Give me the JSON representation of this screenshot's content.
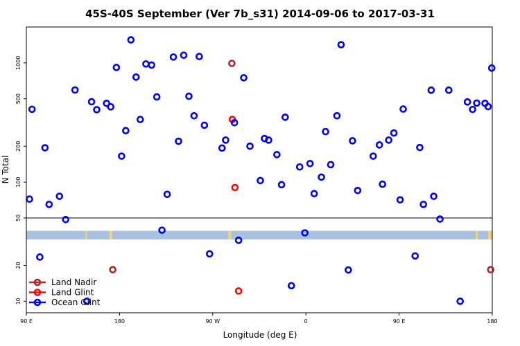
{
  "chart_data": {
    "type": "scatter",
    "title": "45S-40S September (Ver 7b_s31)   2014-09-06 to 2017-03-31",
    "xlabel": "Longitude (deg E)",
    "ylabel": "N Total",
    "x_ticks": [
      {
        "lon": 90,
        "label": "90 E"
      },
      {
        "lon": 180,
        "label": "180"
      },
      {
        "lon": 270,
        "label": "90 W"
      },
      {
        "lon": 360,
        "label": "0"
      },
      {
        "lon": 450,
        "label": "90 E"
      },
      {
        "lon": 540,
        "label": "180"
      }
    ],
    "xlim": [
      90,
      540
    ],
    "upper_panel": {
      "scale": "log",
      "ylim": [
        50,
        2000
      ],
      "ticks": [
        50,
        100,
        200,
        500,
        1000
      ]
    },
    "lower_panel": {
      "scale": "log",
      "ylim": [
        8,
        50
      ],
      "ticks": [
        10,
        20
      ]
    },
    "legend": {
      "position": "bottom-left"
    },
    "map_strip": {
      "ocean_color": "#a9c1e0",
      "land_color": "#f2d27a",
      "land_lons": [
        [
          147,
          148.5
        ],
        [
          170,
          173
        ],
        [
          285,
          288
        ],
        [
          524,
          526
        ],
        [
          536,
          540
        ]
      ]
    },
    "series": [
      {
        "name": "Land Nadir",
        "color": "#a52a2a",
        "points": [
          {
            "x": 173.5,
            "y": 18.4
          },
          {
            "x": 288.5,
            "y": 990
          },
          {
            "x": 538.5,
            "y": 18.4
          }
        ]
      },
      {
        "name": "Land Glint",
        "color": "#ff0000",
        "points": [
          {
            "x": 289,
            "y": 335
          },
          {
            "x": 291.5,
            "y": 90
          },
          {
            "x": 295,
            "y": 12.2
          }
        ]
      },
      {
        "name": "Ocean Glint",
        "color": "#0000e0",
        "points": [
          {
            "x": 95.5,
            "y": 408
          },
          {
            "x": 103,
            "y": 23.5
          },
          {
            "x": 108,
            "y": 194
          },
          {
            "x": 112,
            "y": 65
          },
          {
            "x": 122,
            "y": 76
          },
          {
            "x": 128,
            "y": 48.5
          },
          {
            "x": 137,
            "y": 592
          },
          {
            "x": 148.5,
            "y": 10
          },
          {
            "x": 153,
            "y": 472
          },
          {
            "x": 158,
            "y": 405
          },
          {
            "x": 167.5,
            "y": 458
          },
          {
            "x": 171.5,
            "y": 428
          },
          {
            "x": 177,
            "y": 915
          },
          {
            "x": 182,
            "y": 165
          },
          {
            "x": 186,
            "y": 270
          },
          {
            "x": 191,
            "y": 1560
          },
          {
            "x": 196,
            "y": 760
          },
          {
            "x": 200,
            "y": 335
          },
          {
            "x": 205.5,
            "y": 980
          },
          {
            "x": 211,
            "y": 958
          },
          {
            "x": 216,
            "y": 518
          },
          {
            "x": 221,
            "y": 39.5
          },
          {
            "x": 226,
            "y": 79
          },
          {
            "x": 232,
            "y": 1120
          },
          {
            "x": 237,
            "y": 220
          },
          {
            "x": 242,
            "y": 1160
          },
          {
            "x": 247,
            "y": 525
          },
          {
            "x": 252,
            "y": 360
          },
          {
            "x": 257,
            "y": 1130
          },
          {
            "x": 262,
            "y": 300
          },
          {
            "x": 267,
            "y": 25
          },
          {
            "x": 279,
            "y": 193
          },
          {
            "x": 282.5,
            "y": 225
          },
          {
            "x": 291,
            "y": 315
          },
          {
            "x": 295,
            "y": 32.5
          },
          {
            "x": 300,
            "y": 750
          },
          {
            "x": 306,
            "y": 200
          },
          {
            "x": 316,
            "y": 103
          },
          {
            "x": 320,
            "y": 232
          },
          {
            "x": 324,
            "y": 225
          },
          {
            "x": 332,
            "y": 170
          },
          {
            "x": 336.5,
            "y": 95
          },
          {
            "x": 340,
            "y": 350
          },
          {
            "x": 346,
            "y": 13.5
          },
          {
            "x": 354,
            "y": 134
          },
          {
            "x": 359,
            "y": 37.5
          },
          {
            "x": 364,
            "y": 143
          },
          {
            "x": 368,
            "y": 80
          },
          {
            "x": 375,
            "y": 110
          },
          {
            "x": 379,
            "y": 265
          },
          {
            "x": 384,
            "y": 140
          },
          {
            "x": 390,
            "y": 360
          },
          {
            "x": 394,
            "y": 1420
          },
          {
            "x": 401,
            "y": 18.3
          },
          {
            "x": 405,
            "y": 222
          },
          {
            "x": 410,
            "y": 85
          },
          {
            "x": 425,
            "y": 165
          },
          {
            "x": 431,
            "y": 205
          },
          {
            "x": 434,
            "y": 96
          },
          {
            "x": 440,
            "y": 225
          },
          {
            "x": 445,
            "y": 258
          },
          {
            "x": 451,
            "y": 71
          },
          {
            "x": 454,
            "y": 410
          },
          {
            "x": 465.5,
            "y": 24
          },
          {
            "x": 470,
            "y": 195
          },
          {
            "x": 473.5,
            "y": 65
          },
          {
            "x": 481,
            "y": 590
          },
          {
            "x": 483.5,
            "y": 76
          },
          {
            "x": 489.5,
            "y": 49
          },
          {
            "x": 498,
            "y": 590
          },
          {
            "x": 509,
            "y": 10
          },
          {
            "x": 516,
            "y": 470
          },
          {
            "x": 521,
            "y": 407
          },
          {
            "x": 525,
            "y": 460
          },
          {
            "x": 533,
            "y": 458
          },
          {
            "x": 536,
            "y": 430
          },
          {
            "x": 539.5,
            "y": 905
          },
          {
            "x": 93,
            "y": 72
          }
        ]
      }
    ]
  }
}
